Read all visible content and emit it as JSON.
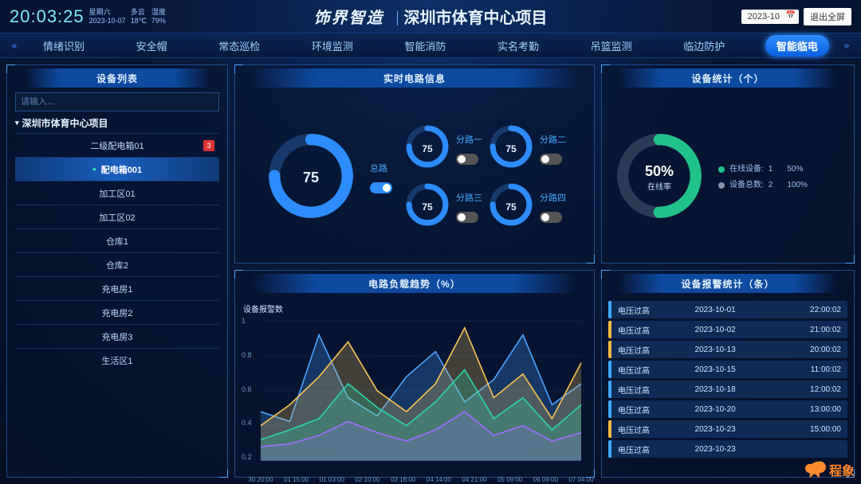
{
  "header": {
    "time": "20:03:25",
    "weekday": "星期六",
    "date": "2023-10-07",
    "weather": "多云",
    "temperature": "18℃",
    "humidity_label": "湿度",
    "humidity": "79%",
    "brand": "饰界智造",
    "project": "深圳市体育中心项目",
    "date_picker": "2023-10",
    "exit_label": "退出全屏"
  },
  "tabs": {
    "items": [
      "情绪识别",
      "安全帽",
      "常态巡检",
      "环境监测",
      "智能消防",
      "实名考勤",
      "吊篮监测",
      "临边防护",
      "智能临电"
    ],
    "active_index": 8
  },
  "panels": {
    "device_list_title": "设备列表",
    "circuit_title": "实时电路信息",
    "stats_title": "设备统计（个）",
    "trend_title": "电路负载趋势（%）",
    "alarm_title": "设备报警统计（条）"
  },
  "device_list": {
    "search_placeholder": "请输入...",
    "project_name": "深圳市体育中心项目",
    "items": [
      {
        "label": "二级配电箱01",
        "badge": 3,
        "active": false
      },
      {
        "label": "配电箱001",
        "badge": null,
        "active": true
      },
      {
        "label": "加工区01",
        "badge": null,
        "active": false
      },
      {
        "label": "加工区02",
        "badge": null,
        "active": false
      },
      {
        "label": "仓库1",
        "badge": null,
        "active": false
      },
      {
        "label": "仓库2",
        "badge": null,
        "active": false
      },
      {
        "label": "充电房1",
        "badge": null,
        "active": false
      },
      {
        "label": "充电房2",
        "badge": null,
        "active": false
      },
      {
        "label": "充电房3",
        "badge": null,
        "active": false
      },
      {
        "label": "生活区1",
        "badge": null,
        "active": false
      }
    ]
  },
  "circuit": {
    "main": {
      "label": "总路",
      "value": 75,
      "toggle_on": true,
      "color": "#2d8cff",
      "track": "#163a6a"
    },
    "subs": [
      {
        "label": "分路一",
        "value": 75,
        "toggle_on": false
      },
      {
        "label": "分路二",
        "value": 75,
        "toggle_on": false
      },
      {
        "label": "分路三",
        "value": 75,
        "toggle_on": false
      },
      {
        "label": "分路四",
        "value": 75,
        "toggle_on": false
      }
    ],
    "sub_color": "#2d8cff",
    "sub_track": "#163a6a"
  },
  "stats": {
    "percent": 50,
    "percent_text": "50%",
    "rate_label": "在线率",
    "ring_color": "#21c18c",
    "ring_track": "#2b3a55",
    "legend": [
      {
        "label": "在线设备:",
        "value": "1",
        "pct": "50%",
        "color": "#21c18c"
      },
      {
        "label": "设备总数:",
        "value": "2",
        "pct": "100%",
        "color": "#8a93a8"
      }
    ]
  },
  "trend": {
    "subtitle": "设备报警数",
    "ylabel_values": [
      "1",
      "0.8",
      "0.6",
      "0.4",
      "0.2"
    ],
    "xlabels": [
      "30 20:00",
      "01 15:00",
      "01 03:00",
      "02 10:00",
      "03 18:00",
      "04 14:00",
      "04 21:00",
      "05 09:00",
      "06 09:00",
      "07 04:00"
    ],
    "series": [
      {
        "color": "#4aa3ff",
        "fill": "rgba(74,163,255,.25)",
        "points": [
          0.35,
          0.28,
          0.9,
          0.45,
          0.32,
          0.6,
          0.78,
          0.42,
          0.58,
          0.9,
          0.4,
          0.55
        ]
      },
      {
        "color": "#f6c453",
        "fill": "rgba(246,196,83,.25)",
        "points": [
          0.25,
          0.4,
          0.6,
          0.85,
          0.5,
          0.35,
          0.55,
          0.95,
          0.45,
          0.62,
          0.3,
          0.7
        ]
      },
      {
        "color": "#2bd4a7",
        "fill": "rgba(43,212,167,.25)",
        "points": [
          0.15,
          0.22,
          0.3,
          0.55,
          0.38,
          0.25,
          0.42,
          0.65,
          0.3,
          0.45,
          0.22,
          0.4
        ]
      },
      {
        "color": "#9b6dff",
        "fill": "rgba(155,109,255,.2)",
        "points": [
          0.1,
          0.12,
          0.18,
          0.28,
          0.2,
          0.14,
          0.22,
          0.35,
          0.18,
          0.25,
          0.14,
          0.2
        ]
      }
    ],
    "ymax": 1.0,
    "grid_color": "#17345f",
    "bg": "transparent"
  },
  "alarms": {
    "rows": [
      {
        "type": "电压过高",
        "date": "2023-10-01",
        "time": "22:00:02",
        "accent": "#3fa9ff"
      },
      {
        "type": "电压过高",
        "date": "2023-10-02",
        "time": "21:00:02",
        "accent": "#f5b940"
      },
      {
        "type": "电压过高",
        "date": "2023-10-13",
        "time": "20:00:02",
        "accent": "#f5b940"
      },
      {
        "type": "电压过高",
        "date": "2023-10-15",
        "time": "11:00:02",
        "accent": "#3fa9ff"
      },
      {
        "type": "电压过高",
        "date": "2023-10-18",
        "time": "12:00:02",
        "accent": "#3fa9ff"
      },
      {
        "type": "电压过高",
        "date": "2023-10-20",
        "time": "13:00:00",
        "accent": "#3fa9ff"
      },
      {
        "type": "电压过高",
        "date": "2023-10-23",
        "time": "15:00:00",
        "accent": "#f5b940"
      },
      {
        "type": "电压过高",
        "date": "2023-10-23",
        "time": "",
        "accent": "#3fa9ff"
      }
    ]
  },
  "watermark": {
    "text": "程象"
  }
}
